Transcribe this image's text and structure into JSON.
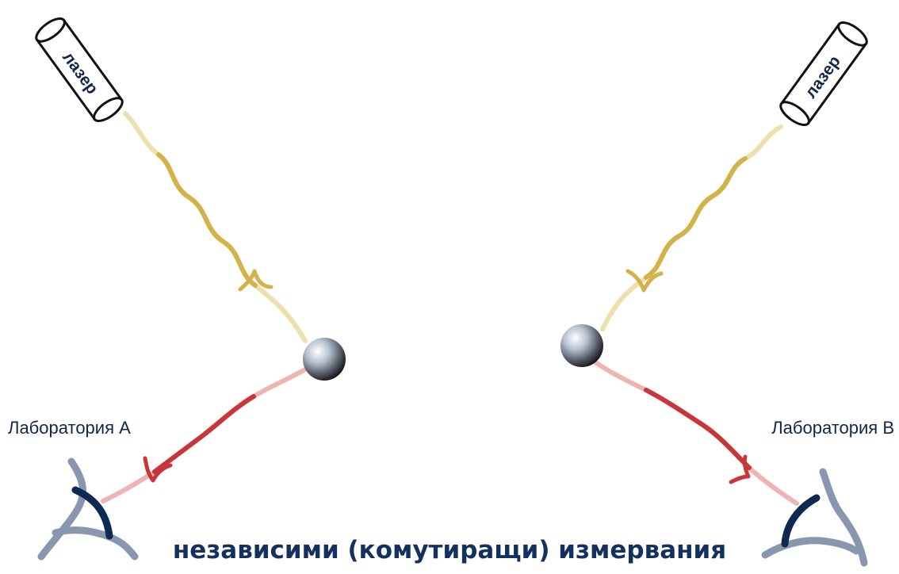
{
  "laser_left": {
    "label": "лазер"
  },
  "laser_right": {
    "label": "лазер"
  },
  "lab_a": {
    "label": "Лаборатория A"
  },
  "lab_b": {
    "label": "Лаборатория B"
  },
  "caption": "независими (комутиращи) измервания",
  "colors": {
    "laser_beam": "#d4b24a",
    "laser_beam_light": "#ece0ac",
    "entangled_beam": "#c9363a",
    "entangled_beam_light": "#eeb4b4",
    "detector": "#0f2a52",
    "detector_light": "#8897ad",
    "text": "#10264a"
  }
}
